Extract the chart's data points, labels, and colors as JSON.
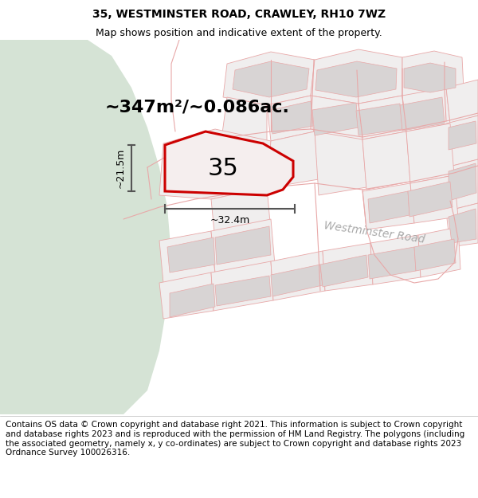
{
  "title_line1": "35, WESTMINSTER ROAD, CRAWLEY, RH10 7WZ",
  "title_line2": "Map shows position and indicative extent of the property.",
  "footer_text": "Contains OS data © Crown copyright and database right 2021. This information is subject to Crown copyright and database rights 2023 and is reproduced with the permission of HM Land Registry. The polygons (including the associated geometry, namely x, y co-ordinates) are subject to Crown copyright and database rights 2023 Ordnance Survey 100026316.",
  "area_text": "~347m²/~0.086ac.",
  "label_35": "35",
  "dim_width": "~32.4m",
  "dim_height": "~21.5m",
  "road_label": "Westminster Road",
  "bg_map_color": "#f2eded",
  "green_area_color": "#d5e3d5",
  "plot_fill": "#f0eeee",
  "building_fill": "#d8d4d4",
  "plot_stroke": "#e8a8a8",
  "highlight_stroke": "#cc0000",
  "highlight_fill": "#f5eeee",
  "road_stroke": "#e8a8a8",
  "dim_color": "#555555",
  "title_fontsize": 10,
  "subtitle_fontsize": 9,
  "footer_fontsize": 7.5,
  "area_fontsize": 16,
  "label35_fontsize": 22,
  "road_label_fontsize": 10,
  "dim_fontsize": 9
}
